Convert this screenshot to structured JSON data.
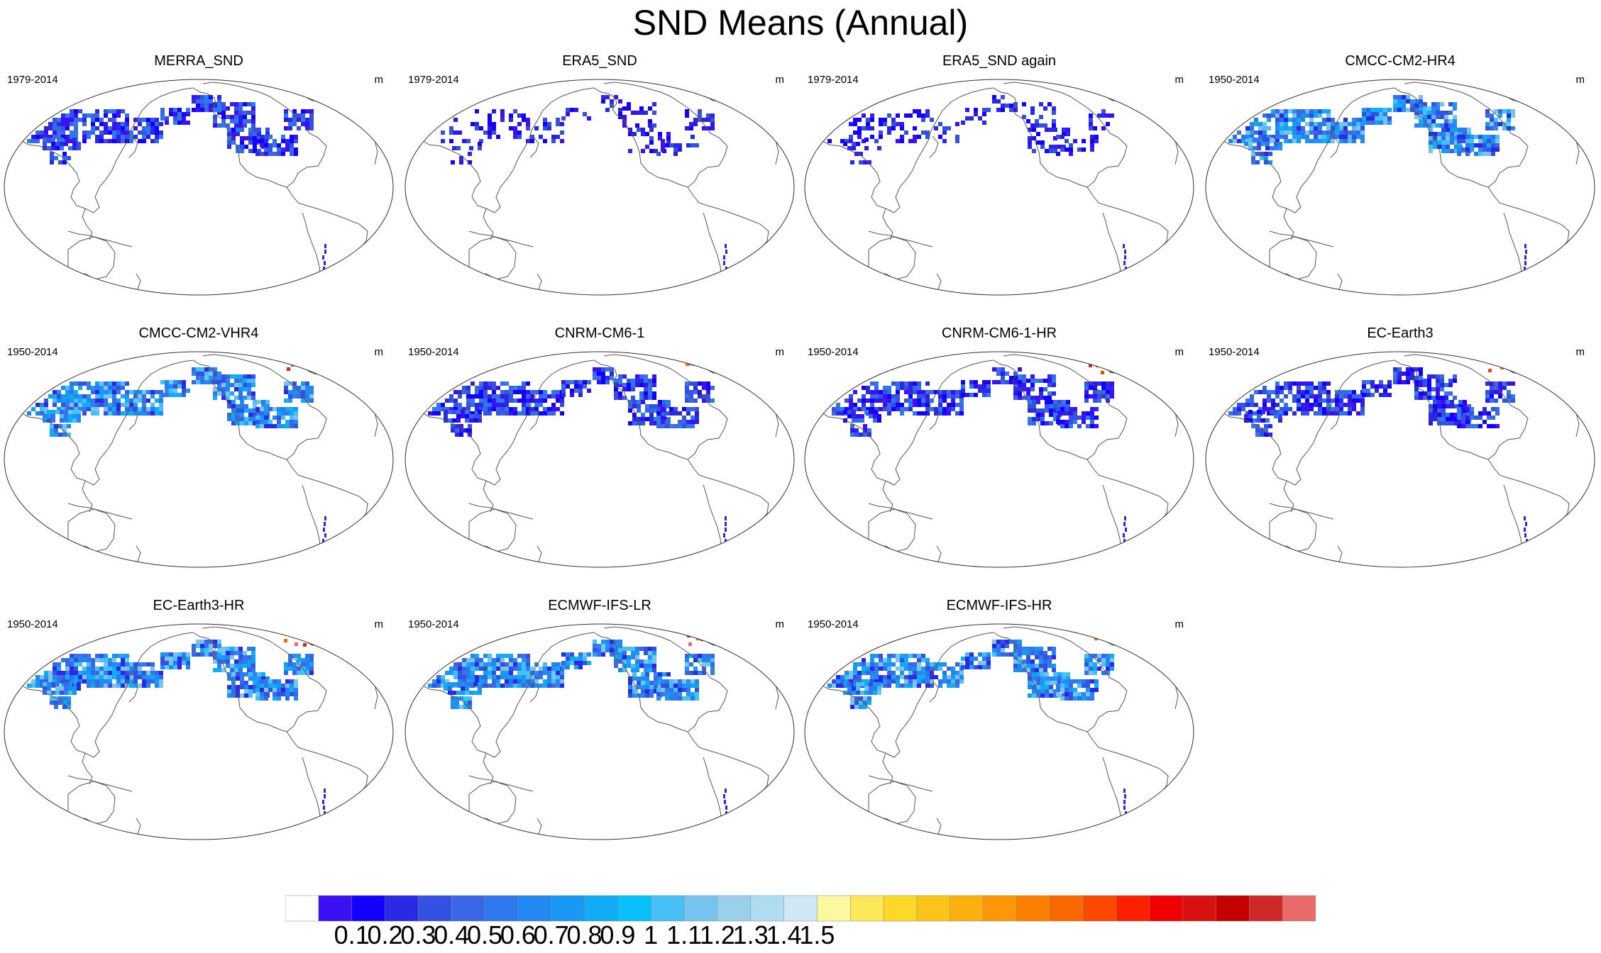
{
  "title": "SND Means (Annual)",
  "panels": [
    {
      "title": "MERRA_SND",
      "period": "1979-2014",
      "unit": "m",
      "antarctica": false,
      "intensity": "med",
      "alaska": false
    },
    {
      "title": "ERA5_SND",
      "period": "1979-2014",
      "unit": "m",
      "antarctica": true,
      "intensity": "sparse",
      "alaska": false
    },
    {
      "title": "ERA5_SND again",
      "period": "1979-2014",
      "unit": "m",
      "antarctica": true,
      "intensity": "sparse",
      "alaska": false
    },
    {
      "title": "CMCC-CM2-HR4",
      "period": "1950-2014",
      "unit": "m",
      "antarctica": true,
      "intensity": "high",
      "alaska": false
    },
    {
      "title": "CMCC-CM2-VHR4",
      "period": "1950-2014",
      "unit": "m",
      "antarctica": true,
      "intensity": "high",
      "alaska": false
    },
    {
      "title": "CNRM-CM6-1",
      "period": "1950-2014",
      "unit": "m",
      "antarctica": true,
      "intensity": "med",
      "alaska": true
    },
    {
      "title": "CNRM-CM6-1-HR",
      "period": "1950-2014",
      "unit": "m",
      "antarctica": true,
      "intensity": "med",
      "alaska": true
    },
    {
      "title": "EC-Earth3",
      "period": "1950-2014",
      "unit": "m",
      "antarctica": true,
      "intensity": "med",
      "alaska": true
    },
    {
      "title": "EC-Earth3-HR",
      "period": "1950-2014",
      "unit": "m",
      "antarctica": true,
      "intensity": "high",
      "alaska": true
    },
    {
      "title": "ECMWF-IFS-LR",
      "period": "1950-2014",
      "unit": "m",
      "antarctica": false,
      "intensity": "high",
      "alaska": false
    },
    {
      "title": "ECMWF-IFS-HR",
      "period": "1950-2014",
      "unit": "m",
      "antarctica": false,
      "intensity": "high",
      "alaska": false
    }
  ],
  "colorbar": {
    "colors": [
      "#ffffff",
      "#3b10f2",
      "#1400ff",
      "#2a2ae6",
      "#3452e2",
      "#3a67e6",
      "#2f78ee",
      "#2288f2",
      "#1a98f6",
      "#12acf6",
      "#08c0fa",
      "#46c0f6",
      "#78c4ee",
      "#9ad0ec",
      "#b0dcf2",
      "#d0e8f6",
      "#fcf8a0",
      "#fce858",
      "#fcd828",
      "#fcc418",
      "#fcb010",
      "#fc9808",
      "#fc8000",
      "#fc6800",
      "#fc4800",
      "#fc2000",
      "#f00000",
      "#d81010",
      "#c40000",
      "#d02828",
      "#e86a6a"
    ],
    "labels": [
      "0.1",
      "0.2",
      "0.3",
      "0.4",
      "0.5",
      "0.6",
      "0.7",
      "0.8",
      "0.9",
      "1",
      "1.1",
      "1.2",
      "1.3",
      "1.4",
      "1.5"
    ]
  }
}
